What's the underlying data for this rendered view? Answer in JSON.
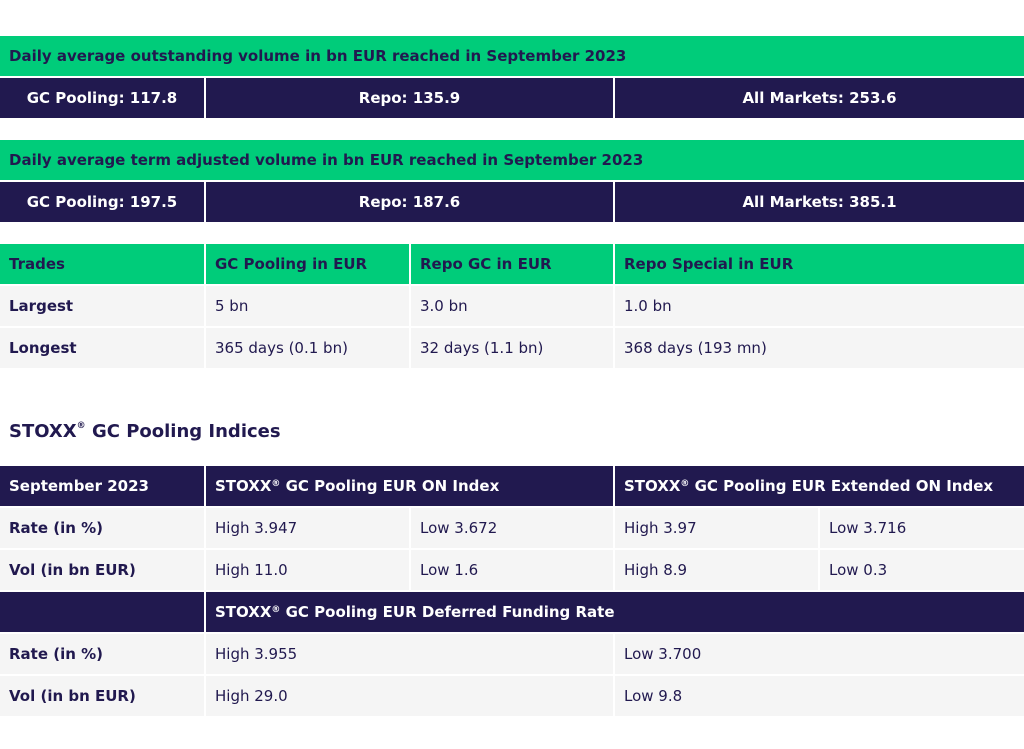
{
  "outstanding": {
    "header": "Daily average outstanding volume in bn EUR reached in September 2023",
    "gc": "GC Pooling: 117.8",
    "repo": "Repo: 135.9",
    "all": "All Markets: 253.6"
  },
  "term_adjusted": {
    "header": "Daily average term adjusted volume in bn EUR reached in September 2023",
    "gc": "GC Pooling: 197.5",
    "repo": "Repo: 187.6",
    "all": "All Markets: 385.1"
  },
  "trades": {
    "headers": [
      "Trades",
      "GC Pooling in EUR",
      "Repo GC in EUR",
      "Repo Special in EUR"
    ],
    "rows": [
      [
        "Largest",
        "5 bn",
        "3.0 bn",
        "1.0 bn"
      ],
      [
        "Longest",
        "365 days (0.1 bn)",
        "32 days (1.1 bn)",
        "368 days (193 mn)"
      ]
    ]
  },
  "indices": {
    "title_prefix": "STOXX",
    "reg": "®",
    "title_suffix": " GC Pooling Indices",
    "period": "September 2023",
    "on_index": " GC Pooling EUR ON Index",
    "ext_index": " GC Pooling EUR Extended ON Index",
    "dfr_index": " GC Pooling EUR Deferred Funding Rate",
    "rows1": [
      [
        "Rate (in %)",
        "High 3.947",
        "Low 3.672",
        "High 3.97",
        "Low 3.716"
      ],
      [
        "Vol (in bn EUR)",
        "High 11.0",
        "Low 1.6",
        "High 8.9",
        "Low 0.3"
      ]
    ],
    "rows2": [
      [
        "Rate (in %)",
        "High 3.955",
        "Low 3.700"
      ],
      [
        "Vol (in bn EUR)",
        "High 29.0",
        "Low 9.8"
      ]
    ]
  },
  "colors": {
    "green": "#00cc7a",
    "navy": "#21194f",
    "row": "#f5f5f5"
  }
}
